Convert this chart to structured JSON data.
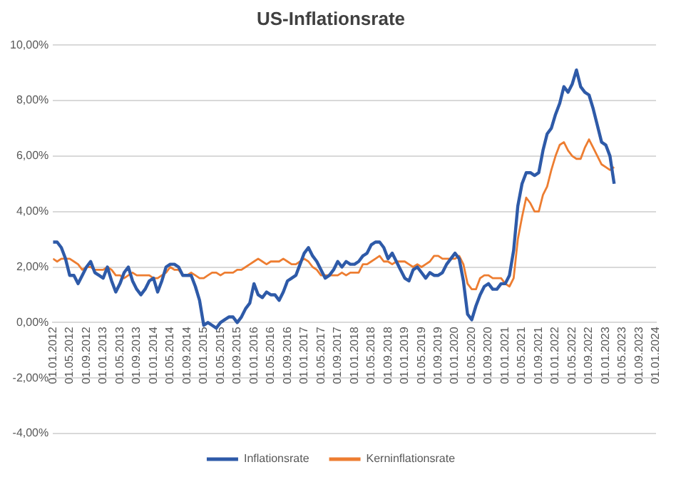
{
  "chart_data": {
    "type": "line",
    "title": "US-Inflationsrate",
    "x": [
      "2012-01",
      "2012-02",
      "2012-03",
      "2012-04",
      "2012-05",
      "2012-06",
      "2012-07",
      "2012-08",
      "2012-09",
      "2012-10",
      "2012-11",
      "2012-12",
      "2013-01",
      "2013-02",
      "2013-03",
      "2013-04",
      "2013-05",
      "2013-06",
      "2013-07",
      "2013-08",
      "2013-09",
      "2013-10",
      "2013-11",
      "2013-12",
      "2014-01",
      "2014-02",
      "2014-03",
      "2014-04",
      "2014-05",
      "2014-06",
      "2014-07",
      "2014-08",
      "2014-09",
      "2014-10",
      "2014-11",
      "2014-12",
      "2015-01",
      "2015-02",
      "2015-03",
      "2015-04",
      "2015-05",
      "2015-06",
      "2015-07",
      "2015-08",
      "2015-09",
      "2015-10",
      "2015-11",
      "2015-12",
      "2016-01",
      "2016-02",
      "2016-03",
      "2016-04",
      "2016-05",
      "2016-06",
      "2016-07",
      "2016-08",
      "2016-09",
      "2016-10",
      "2016-11",
      "2016-12",
      "2017-01",
      "2017-02",
      "2017-03",
      "2017-04",
      "2017-05",
      "2017-06",
      "2017-07",
      "2017-08",
      "2017-09",
      "2017-10",
      "2017-11",
      "2017-12",
      "2018-01",
      "2018-02",
      "2018-03",
      "2018-04",
      "2018-05",
      "2018-06",
      "2018-07",
      "2018-08",
      "2018-09",
      "2018-10",
      "2018-11",
      "2018-12",
      "2019-01",
      "2019-02",
      "2019-03",
      "2019-04",
      "2019-05",
      "2019-06",
      "2019-07",
      "2019-08",
      "2019-09",
      "2019-10",
      "2019-11",
      "2019-12",
      "2020-01",
      "2020-02",
      "2020-03",
      "2020-04",
      "2020-05",
      "2020-06",
      "2020-07",
      "2020-08",
      "2020-09",
      "2020-10",
      "2020-11",
      "2020-12",
      "2021-01",
      "2021-02",
      "2021-03",
      "2021-04",
      "2021-05",
      "2021-06",
      "2021-07",
      "2021-08",
      "2021-09",
      "2021-10",
      "2021-11",
      "2021-12",
      "2022-01",
      "2022-02",
      "2022-03",
      "2022-04",
      "2022-05",
      "2022-06",
      "2022-07",
      "2022-08",
      "2022-09",
      "2022-10",
      "2022-11",
      "2022-12",
      "2023-01",
      "2023-02",
      "2023-03"
    ],
    "series": [
      {
        "name": "Inflationsrate",
        "color": "#2e5aa8",
        "values": [
          2.9,
          2.9,
          2.7,
          2.3,
          1.7,
          1.7,
          1.4,
          1.7,
          2.0,
          2.2,
          1.8,
          1.7,
          1.6,
          2.0,
          1.5,
          1.1,
          1.4,
          1.8,
          2.0,
          1.5,
          1.2,
          1.0,
          1.2,
          1.5,
          1.6,
          1.1,
          1.5,
          2.0,
          2.1,
          2.1,
          2.0,
          1.7,
          1.7,
          1.7,
          1.3,
          0.8,
          -0.1,
          0.0,
          -0.1,
          -0.2,
          0.0,
          0.1,
          0.2,
          0.2,
          0.0,
          0.2,
          0.5,
          0.7,
          1.4,
          1.0,
          0.9,
          1.1,
          1.0,
          1.0,
          0.8,
          1.1,
          1.5,
          1.6,
          1.7,
          2.1,
          2.5,
          2.7,
          2.4,
          2.2,
          1.9,
          1.6,
          1.7,
          1.9,
          2.2,
          2.0,
          2.2,
          2.1,
          2.1,
          2.2,
          2.4,
          2.5,
          2.8,
          2.9,
          2.9,
          2.7,
          2.3,
          2.5,
          2.2,
          1.9,
          1.6,
          1.5,
          1.9,
          2.0,
          1.8,
          1.6,
          1.8,
          1.7,
          1.7,
          1.8,
          2.1,
          2.3,
          2.5,
          2.3,
          1.5,
          0.3,
          0.1,
          0.6,
          1.0,
          1.3,
          1.4,
          1.2,
          1.2,
          1.4,
          1.4,
          1.7,
          2.6,
          4.2,
          5.0,
          5.4,
          5.4,
          5.3,
          5.4,
          6.2,
          6.8,
          7.0,
          7.5,
          7.9,
          8.5,
          8.3,
          8.6,
          9.1,
          8.5,
          8.3,
          8.2,
          7.7,
          7.1,
          6.5,
          6.4,
          6.0,
          5.0
        ]
      },
      {
        "name": "Kerninflationsrate",
        "color": "#ed7d31",
        "values": [
          2.3,
          2.2,
          2.3,
          2.3,
          2.3,
          2.2,
          2.1,
          1.9,
          2.0,
          2.0,
          1.9,
          1.9,
          1.9,
          2.0,
          1.9,
          1.7,
          1.7,
          1.6,
          1.7,
          1.8,
          1.7,
          1.7,
          1.7,
          1.7,
          1.6,
          1.6,
          1.7,
          1.8,
          2.0,
          1.9,
          1.9,
          1.7,
          1.7,
          1.8,
          1.7,
          1.6,
          1.6,
          1.7,
          1.8,
          1.8,
          1.7,
          1.8,
          1.8,
          1.8,
          1.9,
          1.9,
          2.0,
          2.1,
          2.2,
          2.3,
          2.2,
          2.1,
          2.2,
          2.2,
          2.2,
          2.3,
          2.2,
          2.1,
          2.1,
          2.2,
          2.3,
          2.2,
          2.0,
          1.9,
          1.7,
          1.7,
          1.7,
          1.7,
          1.7,
          1.8,
          1.7,
          1.8,
          1.8,
          1.8,
          2.1,
          2.1,
          2.2,
          2.3,
          2.4,
          2.2,
          2.2,
          2.1,
          2.2,
          2.2,
          2.2,
          2.1,
          2.0,
          2.1,
          2.0,
          2.1,
          2.2,
          2.4,
          2.4,
          2.3,
          2.3,
          2.3,
          2.3,
          2.4,
          2.1,
          1.4,
          1.2,
          1.2,
          1.6,
          1.7,
          1.7,
          1.6,
          1.6,
          1.6,
          1.4,
          1.3,
          1.6,
          3.0,
          3.8,
          4.5,
          4.3,
          4.0,
          4.0,
          4.6,
          4.9,
          5.5,
          6.0,
          6.4,
          6.5,
          6.2,
          6.0,
          5.9,
          5.9,
          6.3,
          6.6,
          6.3,
          6.0,
          5.7,
          5.6,
          5.5,
          5.6
        ]
      }
    ],
    "ylim": [
      -4,
      10
    ],
    "yticks": [
      {
        "value": -4,
        "label": "-4,00%"
      },
      {
        "value": -2,
        "label": "-2,00%"
      },
      {
        "value": 0,
        "label": "0,00%"
      },
      {
        "value": 2,
        "label": "2,00%"
      },
      {
        "value": 4,
        "label": "4,00%"
      },
      {
        "value": 6,
        "label": "6,00%"
      },
      {
        "value": 8,
        "label": "8,00%"
      },
      {
        "value": 10,
        "label": "10,00%"
      }
    ],
    "xlim": [
      "2012-01",
      "2024-01"
    ],
    "xticks": [
      {
        "value": "2012-01",
        "label": "01.01.2012"
      },
      {
        "value": "2012-05",
        "label": "01.05.2012"
      },
      {
        "value": "2012-09",
        "label": "01.09.2012"
      },
      {
        "value": "2013-01",
        "label": "01.01.2013"
      },
      {
        "value": "2013-05",
        "label": "01.05.2013"
      },
      {
        "value": "2013-09",
        "label": "01.09.2013"
      },
      {
        "value": "2014-01",
        "label": "01.01.2014"
      },
      {
        "value": "2014-05",
        "label": "01.05.2014"
      },
      {
        "value": "2014-09",
        "label": "01.09.2014"
      },
      {
        "value": "2015-01",
        "label": "01.01.2015"
      },
      {
        "value": "2015-05",
        "label": "01.05.2015"
      },
      {
        "value": "2015-09",
        "label": "01.09.2015"
      },
      {
        "value": "2016-01",
        "label": "01.01.2016"
      },
      {
        "value": "2016-05",
        "label": "01.05.2016"
      },
      {
        "value": "2016-09",
        "label": "01.09.2016"
      },
      {
        "value": "2017-01",
        "label": "01.01.2017"
      },
      {
        "value": "2017-05",
        "label": "01.05.2017"
      },
      {
        "value": "2017-09",
        "label": "01.09.2017"
      },
      {
        "value": "2018-01",
        "label": "01.01.2018"
      },
      {
        "value": "2018-05",
        "label": "01.05.2018"
      },
      {
        "value": "2018-09",
        "label": "01.09.2018"
      },
      {
        "value": "2019-01",
        "label": "01.01.2019"
      },
      {
        "value": "2019-05",
        "label": "01.05.2019"
      },
      {
        "value": "2019-09",
        "label": "01.09.2019"
      },
      {
        "value": "2020-01",
        "label": "01.01.2020"
      },
      {
        "value": "2020-05",
        "label": "01.05.2020"
      },
      {
        "value": "2020-09",
        "label": "01.09.2020"
      },
      {
        "value": "2021-01",
        "label": "01.01.2021"
      },
      {
        "value": "2021-05",
        "label": "01.05.2021"
      },
      {
        "value": "2021-09",
        "label": "01.09.2021"
      },
      {
        "value": "2022-01",
        "label": "01.01.2022"
      },
      {
        "value": "2022-05",
        "label": "01.05.2022"
      },
      {
        "value": "2022-09",
        "label": "01.09.2022"
      },
      {
        "value": "2023-01",
        "label": "01.01.2023"
      },
      {
        "value": "2023-05",
        "label": "01.05.2023"
      },
      {
        "value": "2023-09",
        "label": "01.09.2023"
      },
      {
        "value": "2024-01",
        "label": "01.01.2024"
      }
    ],
    "grid": "y",
    "legend": "bottom",
    "marker": "none",
    "line_style": "solid"
  }
}
